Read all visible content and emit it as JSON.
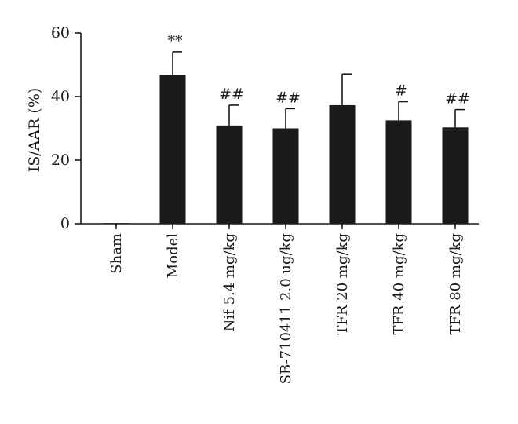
{
  "chart_data": {
    "type": "bar",
    "categories": [
      "Sham",
      "Model",
      "Nif 5.4 mg/kg",
      "SB-710411 2.0 ug/kg",
      "TFR 20 mg/kg",
      "TFR 40 mg/kg",
      "TFR 80 mg/kg"
    ],
    "values": [
      0.2,
      46.8,
      30.9,
      30.0,
      37.3,
      32.5,
      30.3
    ],
    "errors": [
      0,
      7.3,
      6.4,
      6.2,
      9.8,
      5.9,
      5.6
    ],
    "significance": [
      "",
      "**",
      "##",
      "##",
      "",
      "#",
      "##"
    ],
    "ylabel": "IS/AAR (%)",
    "xlabel": "",
    "title": "",
    "ylim": [
      0,
      60
    ],
    "yticks": [
      0,
      20,
      40,
      60
    ],
    "bar_color": "#1a1a1a",
    "grid": false,
    "legend": "none"
  }
}
